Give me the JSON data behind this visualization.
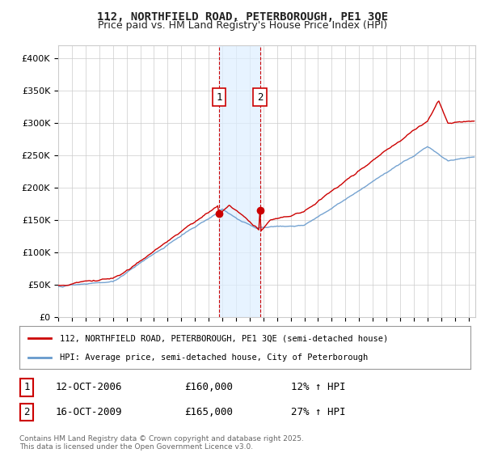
{
  "title1": "112, NORTHFIELD ROAD, PETERBOROUGH, PE1 3QE",
  "title2": "Price paid vs. HM Land Registry's House Price Index (HPI)",
  "ylabel_ticks": [
    "£0",
    "£50K",
    "£100K",
    "£150K",
    "£200K",
    "£250K",
    "£300K",
    "£350K",
    "£400K"
  ],
  "ytick_values": [
    0,
    50000,
    100000,
    150000,
    200000,
    250000,
    300000,
    350000,
    400000
  ],
  "ylim": [
    0,
    420000
  ],
  "sale1_year": 2006.79,
  "sale1_price": 160000,
  "sale1_date": "12-OCT-2006",
  "sale1_hpi": "12% ↑ HPI",
  "sale2_year": 2009.79,
  "sale2_price": 165000,
  "sale2_date": "16-OCT-2009",
  "sale2_hpi": "27% ↑ HPI",
  "legend1": "112, NORTHFIELD ROAD, PETERBOROUGH, PE1 3QE (semi-detached house)",
  "legend2": "HPI: Average price, semi-detached house, City of Peterborough",
  "footnote": "Contains HM Land Registry data © Crown copyright and database right 2025.\nThis data is licensed under the Open Government Licence v3.0.",
  "line_color_red": "#cc0000",
  "line_color_blue": "#6699cc",
  "vline_color": "#cc0000",
  "shade_color": "#ddeeff",
  "background_color": "#ffffff",
  "grid_color": "#cccccc",
  "xlim_start": 1995,
  "xlim_end": 2025.5
}
